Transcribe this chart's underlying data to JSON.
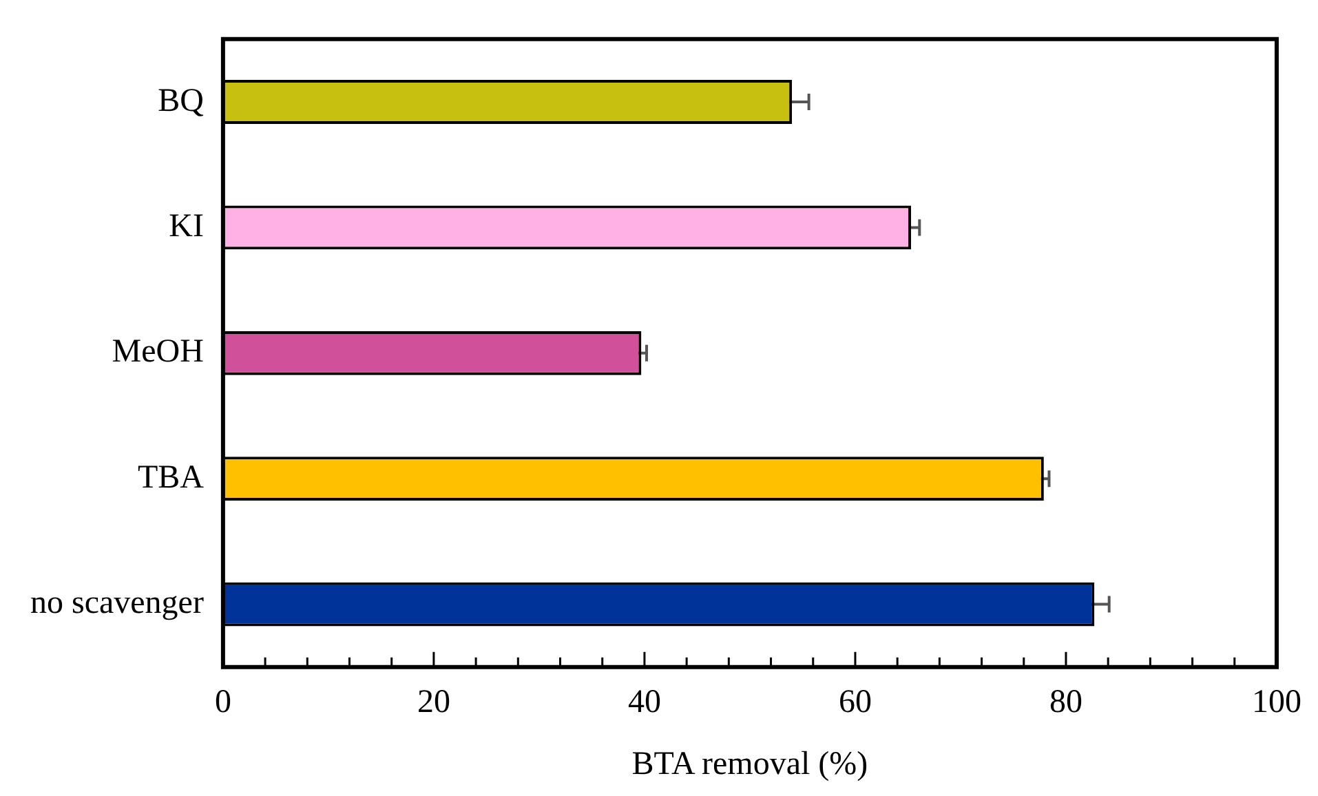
{
  "chart_data": {
    "type": "bar",
    "orientation": "horizontal",
    "xlabel": "BTA removal (%)",
    "categories": [
      "BQ",
      "KI",
      "MeOH",
      "TBA",
      "no scavenger"
    ],
    "values": [
      54.0,
      65.3,
      39.7,
      77.9,
      82.7
    ],
    "errors": [
      1.6,
      0.8,
      0.5,
      0.5,
      1.4
    ],
    "colors": [
      "#c8c010",
      "#ffb0e4",
      "#d0509a",
      "#ffc000",
      "#003399"
    ],
    "xlim": [
      0,
      100
    ],
    "xticks": [
      0,
      {
        "value": 4,
        "label": null
      },
      {
        "value": 8,
        "label": null
      },
      {
        "value": 12,
        "label": null
      },
      {
        "value": 16,
        "label": null
      },
      20,
      {
        "value": 24,
        "label": null
      },
      {
        "value": 28,
        "label": null
      },
      {
        "value": 32,
        "label": null
      },
      {
        "value": 36,
        "label": null
      },
      40,
      {
        "value": 44,
        "label": null
      },
      {
        "value": 48,
        "label": null
      },
      {
        "value": 52,
        "label": null
      },
      {
        "value": 56,
        "label": null
      },
      60,
      {
        "value": 64,
        "label": null
      },
      {
        "value": 68,
        "label": null
      },
      {
        "value": 72,
        "label": null
      },
      {
        "value": 76,
        "label": null
      },
      80,
      {
        "value": 84,
        "label": null
      },
      {
        "value": 88,
        "label": null
      },
      {
        "value": 92,
        "label": null
      },
      {
        "value": 96,
        "label": null
      },
      100
    ]
  }
}
